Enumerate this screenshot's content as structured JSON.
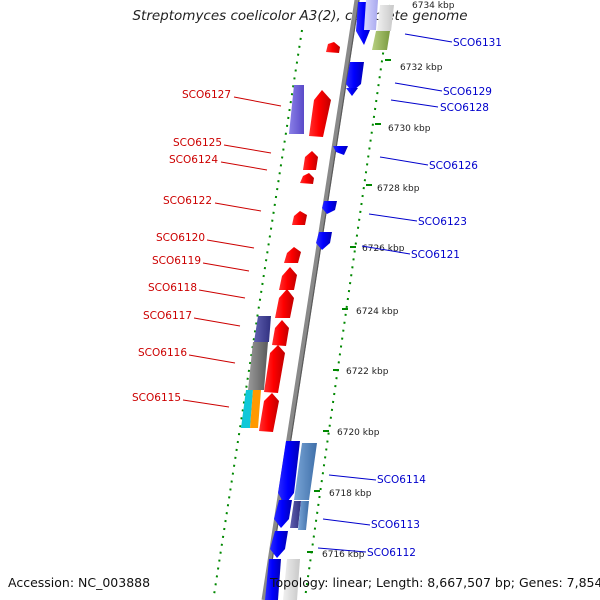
{
  "title": "Streptomyces coelicolor A3(2), complete genome",
  "accession": "Accession: NC_003888",
  "summary": "Topology: linear; Length: 8,667,507 bp; Genes: 7,854",
  "colors": {
    "forward_gene": "#ff0000",
    "reverse_gene": "#0000ff",
    "forward_label": "#cc0000",
    "reverse_label": "#0000cc",
    "backbone": "#888888",
    "tick": "#008800"
  },
  "scale_ticks": [
    {
      "label": "6734 kbp"
    },
    {
      "label": "6732 kbp"
    },
    {
      "label": "6730 kbp"
    },
    {
      "label": "6728 kbp"
    },
    {
      "label": "6726 kbp"
    },
    {
      "label": "6724 kbp"
    },
    {
      "label": "6722 kbp"
    },
    {
      "label": "6720 kbp"
    },
    {
      "label": "6718 kbp"
    },
    {
      "label": "6716 kbp"
    }
  ],
  "forward_genes": [
    {
      "label": "SCO6127"
    },
    {
      "label": "SCO6125"
    },
    {
      "label": "SCO6124"
    },
    {
      "label": "SCO6122"
    },
    {
      "label": "SCO6120"
    },
    {
      "label": "SCO6119"
    },
    {
      "label": "SCO6118"
    },
    {
      "label": "SCO6117"
    },
    {
      "label": "SCO6116"
    },
    {
      "label": "SCO6115"
    }
  ],
  "reverse_genes": [
    {
      "label": "SCO6131"
    },
    {
      "label": "SCO6129"
    },
    {
      "label": "SCO6128"
    },
    {
      "label": "SCO6126"
    },
    {
      "label": "SCO6123"
    },
    {
      "label": "SCO6121"
    },
    {
      "label": "SCO6114"
    },
    {
      "label": "SCO6113"
    },
    {
      "label": "SCO6112"
    }
  ]
}
